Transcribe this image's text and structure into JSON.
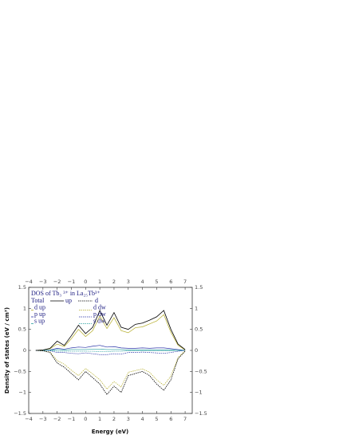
{
  "chart_data": {
    "type": "line",
    "title": "DOS of Tb₃ ³⁺ in La₂₅Tb³⁺",
    "x_label": "Energy (eV)",
    "y_label": "Density of states (eV / cm³)",
    "legend_header": [
      "Total",
      "up",
      "d"
    ],
    "xlim": [
      -4,
      7.5
    ],
    "ylim": [
      -1.5,
      1.5
    ],
    "xticks": [
      {
        "value": -4,
        "label": "−4"
      },
      {
        "value": -3,
        "label": "−3"
      },
      {
        "value": -2,
        "label": "−2"
      },
      {
        "value": -1,
        "label": "−1"
      },
      0,
      1,
      2,
      3,
      4,
      5,
      6,
      7
    ],
    "yticks": [
      {
        "value": -1.5,
        "label": "−1.5"
      },
      {
        "value": -1,
        "label": "−1"
      },
      {
        "value": -0.5,
        "label": "−0.5"
      },
      0,
      0.5,
      1,
      1.5
    ],
    "x": [
      -3.5,
      -3,
      -2.5,
      -2,
      -1.5,
      -1,
      -0.5,
      0,
      0.5,
      1,
      1.5,
      2,
      2.5,
      3,
      3.5,
      4,
      4.5,
      5,
      5.5,
      6,
      6.5,
      7
    ],
    "total_up": {
      "color": "#000000",
      "values": [
        0,
        0.01,
        0.05,
        0.22,
        0.12,
        0.35,
        0.6,
        0.4,
        0.55,
        0.95,
        0.6,
        0.9,
        0.55,
        0.5,
        0.62,
        0.65,
        0.72,
        0.8,
        0.95,
        0.5,
        0.15,
        0.02
      ]
    },
    "total_dw": {
      "color": "#000000",
      "values": [
        0,
        -0.01,
        -0.05,
        -0.3,
        -0.4,
        -0.55,
        -0.7,
        -0.5,
        -0.65,
        -0.8,
        -1.05,
        -0.85,
        -1.0,
        -0.6,
        -0.55,
        -0.5,
        -0.6,
        -0.8,
        -0.95,
        -0.7,
        -0.2,
        -0.02
      ]
    },
    "series": [
      {
        "name": "d up",
        "color": "#b5ad2a",
        "dashed": false,
        "values": [
          0,
          0.01,
          0.04,
          0.15,
          0.09,
          0.28,
          0.5,
          0.33,
          0.47,
          0.82,
          0.52,
          0.78,
          0.47,
          0.42,
          0.54,
          0.56,
          0.63,
          0.7,
          0.85,
          0.43,
          0.12,
          0.01
        ]
      },
      {
        "name": "p up",
        "color": "#2a35a8",
        "dashed": false,
        "values": [
          0,
          0,
          0.01,
          0.05,
          0.03,
          0.06,
          0.08,
          0.07,
          0.1,
          0.12,
          0.08,
          0.09,
          0.06,
          0.05,
          0.05,
          0.06,
          0.05,
          0.06,
          0.06,
          0.04,
          0.02,
          0
        ]
      },
      {
        "name": "s up",
        "color": "#2aa0a0",
        "dashed": false,
        "values": [
          0,
          0,
          0.005,
          0.02,
          0.01,
          0.02,
          0.02,
          0.02,
          0.03,
          0.03,
          0.02,
          0.02,
          0.02,
          0.01,
          0.01,
          0.01,
          0.01,
          0.01,
          0.01,
          0.01,
          0,
          0
        ]
      },
      {
        "name": "d dw",
        "color": "#b5ad2a",
        "dashed": true,
        "values": [
          0,
          -0.01,
          -0.04,
          -0.24,
          -0.33,
          -0.47,
          -0.6,
          -0.43,
          -0.56,
          -0.7,
          -0.92,
          -0.74,
          -0.87,
          -0.52,
          -0.48,
          -0.44,
          -0.52,
          -0.7,
          -0.83,
          -0.61,
          -0.17,
          -0.01
        ]
      },
      {
        "name": "p dw",
        "color": "#2a35a8",
        "dashed": true,
        "values": [
          0,
          0,
          -0.01,
          -0.05,
          -0.05,
          -0.07,
          -0.08,
          -0.06,
          -0.08,
          -0.1,
          -0.1,
          -0.08,
          -0.09,
          -0.05,
          -0.05,
          -0.04,
          -0.05,
          -0.06,
          -0.07,
          -0.05,
          -0.02,
          0
        ]
      },
      {
        "name": "s dw",
        "color": "#2aa0a0",
        "dashed": true,
        "values": [
          0,
          0,
          0,
          -0.02,
          -0.02,
          -0.02,
          -0.02,
          -0.02,
          -0.02,
          -0.03,
          -0.03,
          -0.02,
          -0.02,
          -0.01,
          -0.01,
          -0.01,
          -0.01,
          -0.01,
          -0.01,
          -0.01,
          0,
          0
        ]
      }
    ]
  }
}
